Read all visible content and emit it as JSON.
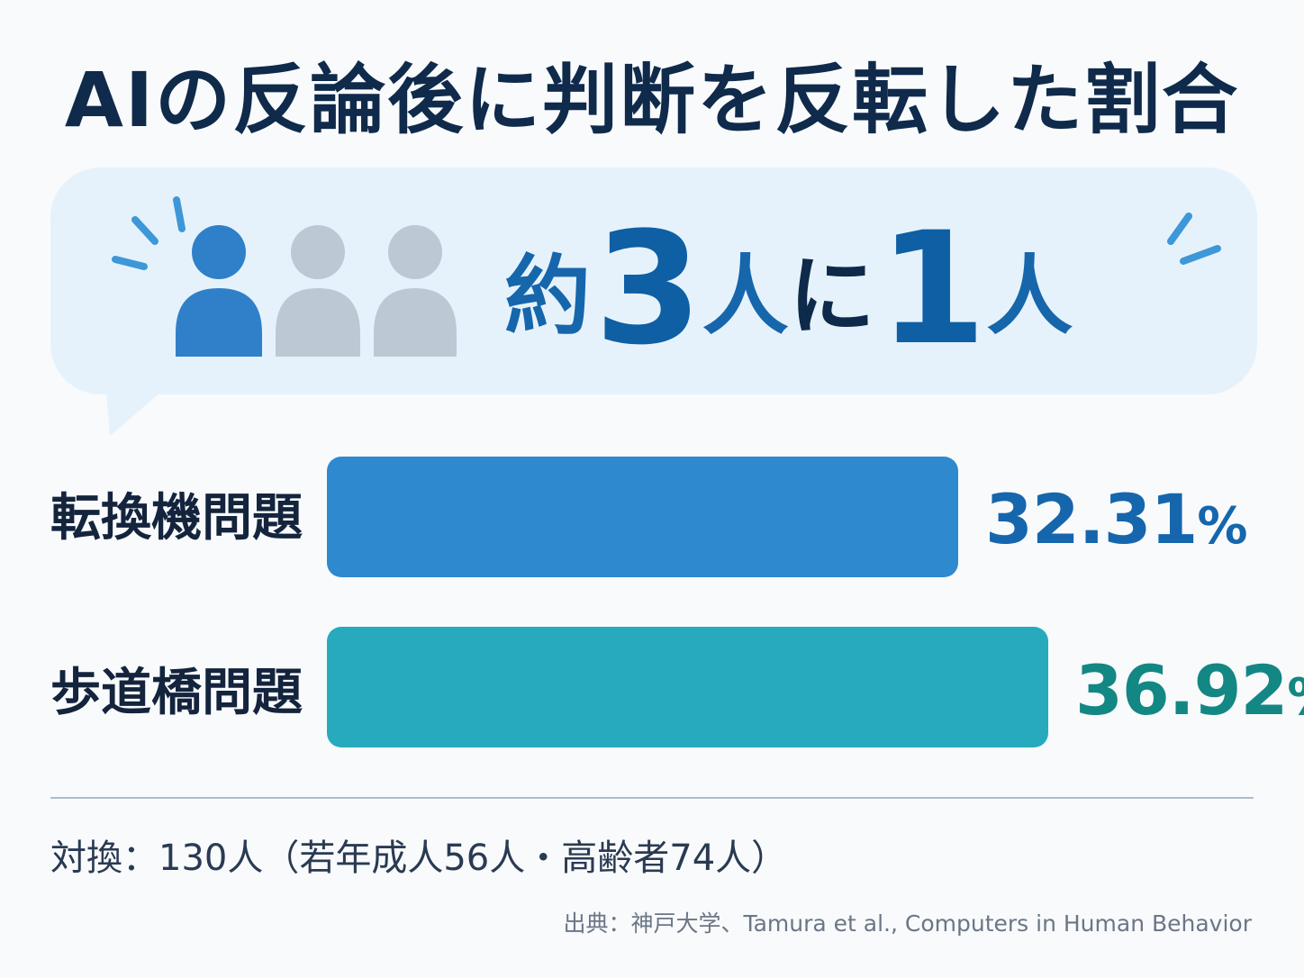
{
  "title": "AIの反論後に判断を反転した割合",
  "callout": {
    "prefix": "約",
    "num1": "3",
    "mid1": "人",
    "mid2": "に",
    "num2": "1",
    "suffix": "人"
  },
  "icon": "people-icon",
  "colors": {
    "accent_blue": "#2e89cf",
    "accent_teal": "#27aabe",
    "pct_blue": "#1566ad",
    "pct_teal": "#138783",
    "icon_highlight": "#2f80c8",
    "icon_muted": "#bcc8d3",
    "title": "#0f2a4a"
  },
  "chart_data": {
    "type": "bar",
    "orientation": "horizontal",
    "categories": [
      "転換機問題",
      "歩道橋問題"
    ],
    "values": [
      32.31,
      36.92
    ],
    "value_labels": [
      "32.31",
      "36.92"
    ],
    "unit": "%"
  },
  "note": "対換：130人（若年成人56人・高齢者74人）",
  "source": "出典：神戸大学、Tamura et al., Computers in Human Behavior"
}
